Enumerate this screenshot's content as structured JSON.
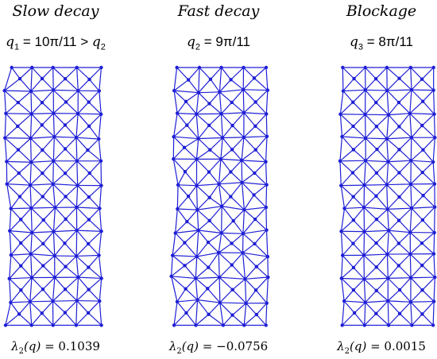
{
  "panels": [
    {
      "id": "slow",
      "title": "Slow decay",
      "q_symbol": "q",
      "q_index": "1",
      "q_value": "= 10π/11 >",
      "q_compare_symbol": "q",
      "q_compare_index": "2",
      "lambda_symbol": "λ",
      "lambda_index": "2",
      "lambda_arg": "(q)",
      "lambda_value": "= 0.1039",
      "edge_wobble": 6,
      "interior_wobble": 1.5
    },
    {
      "id": "fast",
      "title": "Fast decay",
      "q_symbol": "q",
      "q_index": "2",
      "q_value": "= 9π/11",
      "q_compare_symbol": "",
      "q_compare_index": "",
      "lambda_symbol": "λ",
      "lambda_index": "2",
      "lambda_arg": "(q)",
      "lambda_value": "= −0.0756",
      "edge_wobble": 5,
      "interior_wobble": 3
    },
    {
      "id": "blockage",
      "title": "Blockage",
      "q_symbol": "q",
      "q_index": "3",
      "q_value": "= 8π/11",
      "q_compare_symbol": "",
      "q_compare_index": "",
      "lambda_symbol": "λ",
      "lambda_index": "2",
      "lambda_arg": "(q)",
      "lambda_value": "= 0.0015",
      "edge_wobble": 5,
      "interior_wobble": 1.5
    }
  ],
  "mesh": {
    "columns": 4,
    "rows": 11,
    "color": "#1f1fd6"
  }
}
